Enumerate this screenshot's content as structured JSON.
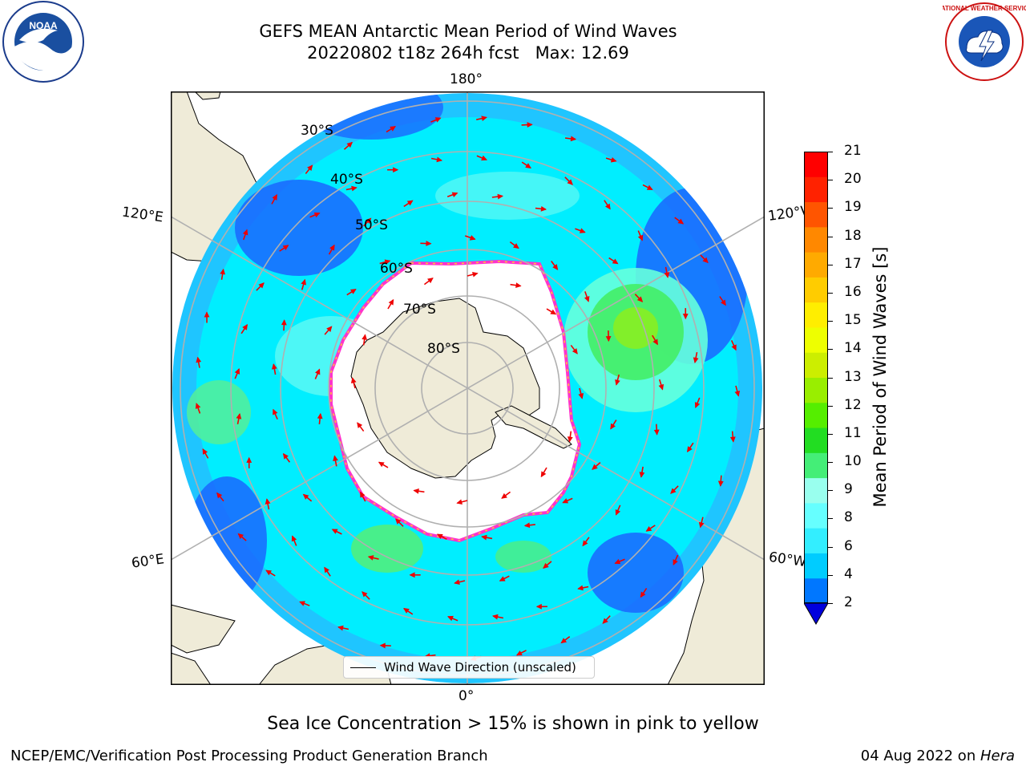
{
  "title_line1": "GEFS MEAN Antarctic Mean Period of Wind Waves",
  "title_line2": "20220802 t18z 264h fcst   Max: 12.69",
  "logos": {
    "left": "noaa-logo",
    "left_text": "NOAA",
    "right": "national-weather-service-logo",
    "right_text": "NATIONAL WEATHER SERVICE"
  },
  "longitude_labels": {
    "top": "180°",
    "bottom": "0°",
    "upper_left": "120°E",
    "upper_right": "120°W",
    "lower_left": "60°E",
    "lower_right": "60°W"
  },
  "latitude_labels": [
    "30°S",
    "40°S",
    "50°S",
    "60°S",
    "70°S",
    "80°S"
  ],
  "colorbar": {
    "label": "Mean Period of Wind Waves [s]",
    "ticks": [
      "2",
      "4",
      "6",
      "8",
      "9",
      "10",
      "11",
      "12",
      "13",
      "14",
      "15",
      "16",
      "17",
      "18",
      "19",
      "20",
      "21"
    ],
    "colors": [
      "#0000dd",
      "#0077ff",
      "#00ccff",
      "#33eeff",
      "#66ffff",
      "#99ffee",
      "#44ee77",
      "#22dd22",
      "#55ee00",
      "#99ee00",
      "#ccee00",
      "#eeff00",
      "#ffee00",
      "#ffcc00",
      "#ffaa00",
      "#ff8800",
      "#ff5500",
      "#ff2200",
      "#ff0000"
    ],
    "extend_min_color": "#0000dd"
  },
  "legend_text": "Wind Wave Direction (unscaled)",
  "note": "Sea Ice Concentration > 15% is shown in pink to yellow",
  "footer_left": "NCEP/EMC/Verification Post Processing Product Generation Branch",
  "footer_date": "04 Aug 2022 on ",
  "footer_machine": "Hera",
  "colors": {
    "land": "#efebd8",
    "ocean_base": "#00eeff",
    "ice": "#ffffff",
    "ice_edge": "#ff33cc",
    "arrows": "#ee0000",
    "grid": "#b0b0b0"
  }
}
